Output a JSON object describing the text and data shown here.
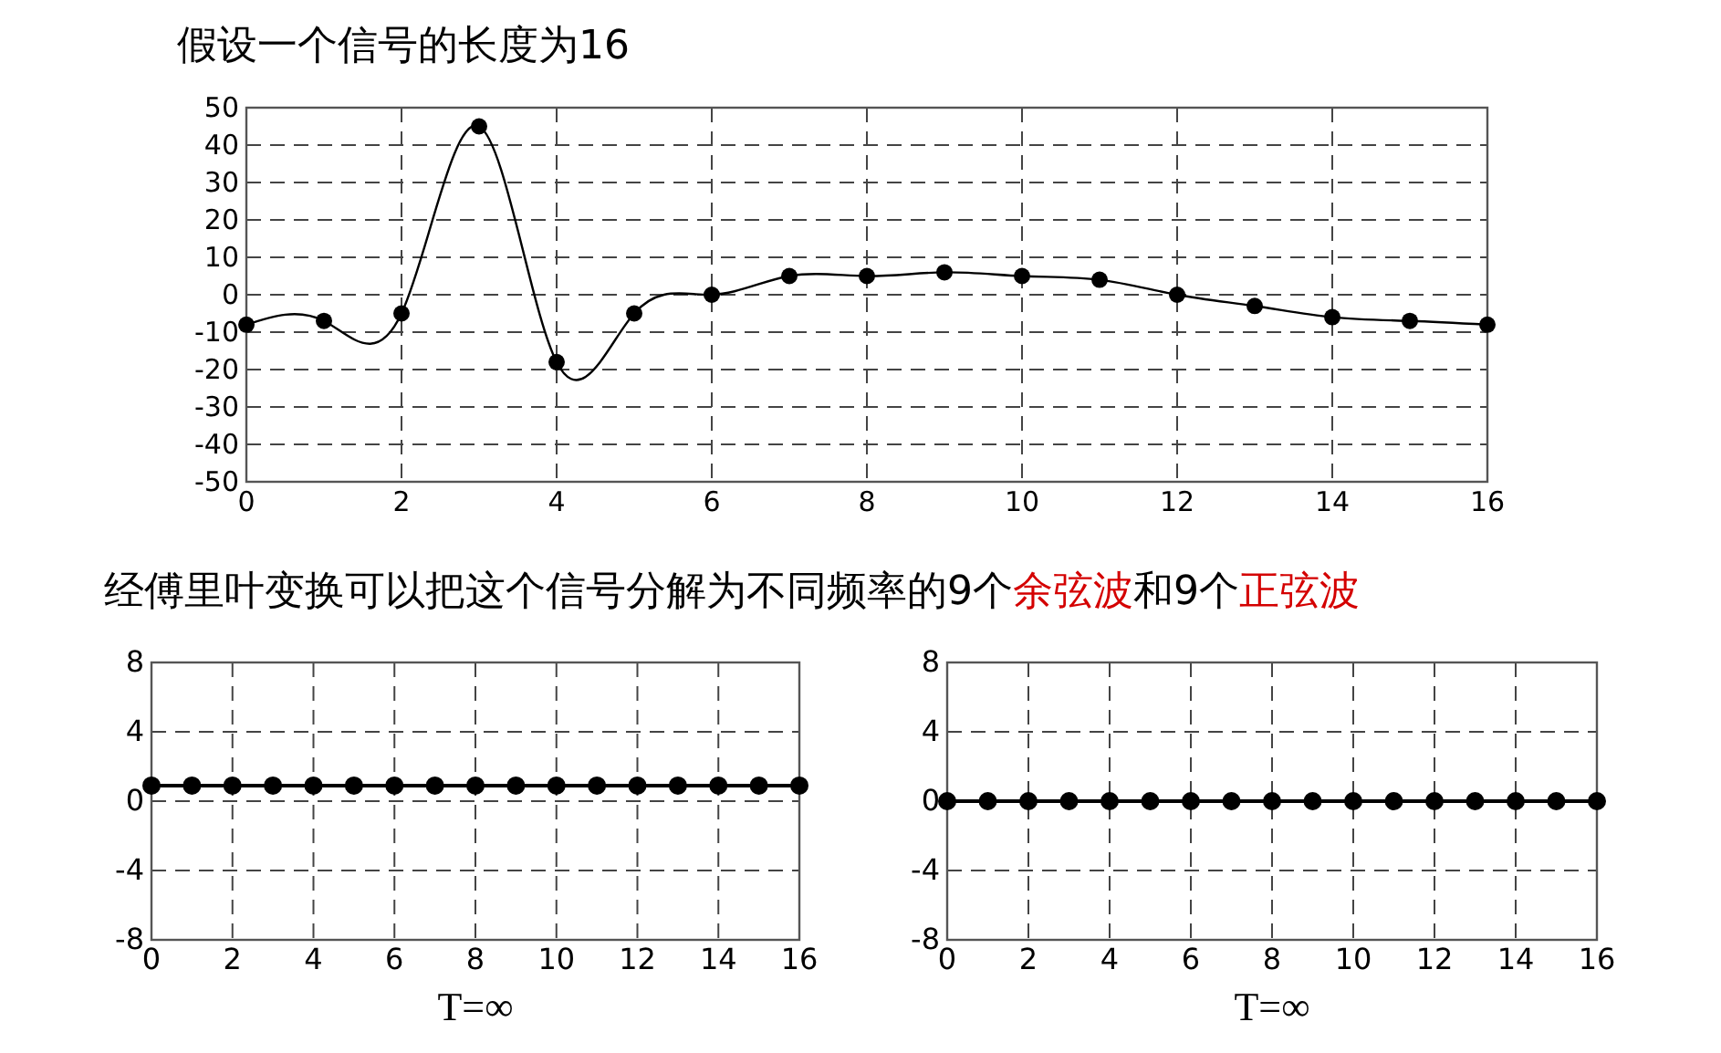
{
  "chart_data": [
    {
      "type": "line",
      "title": "假设一个信号的长度为16",
      "annotations": [
        "经傅里叶变换可以把这个信号分解为不同频率的9个",
        "余弦波",
        "和9个",
        "正弦波"
      ],
      "x": [
        0,
        1,
        2,
        3,
        4,
        5,
        6,
        7,
        8,
        9,
        10,
        11,
        12,
        13,
        14,
        15,
        16
      ],
      "xlim": [
        0,
        16
      ],
      "xticks": [
        0,
        2,
        4,
        6,
        8,
        10,
        12,
        14,
        16
      ],
      "ylim": [
        -50,
        50
      ],
      "yticks": [
        -50,
        -40,
        -30,
        -20,
        -10,
        0,
        10,
        20,
        30,
        40,
        50
      ],
      "grid": true,
      "marker": "circle",
      "line_style": "solid",
      "series": [
        {
          "color": "#000000",
          "values": [
            -8,
            -7,
            -5,
            45,
            -18,
            -5,
            0,
            5,
            5,
            6,
            5,
            4,
            0,
            -3,
            -6,
            -7,
            -8
          ]
        }
      ]
    },
    {
      "type": "line",
      "xlabel": "T=∞",
      "x": [
        0,
        1,
        2,
        3,
        4,
        5,
        6,
        7,
        8,
        9,
        10,
        11,
        12,
        13,
        14,
        15,
        16
      ],
      "xlim": [
        0,
        16
      ],
      "xticks": [
        0,
        2,
        4,
        6,
        8,
        10,
        12,
        14,
        16
      ],
      "ylim": [
        -8,
        8
      ],
      "yticks": [
        -8,
        -4,
        0,
        4,
        8
      ],
      "grid": true,
      "marker": "circle",
      "line_style": "solid",
      "series": [
        {
          "color": "#000000",
          "values": [
            0.9,
            0.9,
            0.9,
            0.9,
            0.9,
            0.9,
            0.9,
            0.9,
            0.9,
            0.9,
            0.9,
            0.9,
            0.9,
            0.9,
            0.9,
            0.9,
            0.9
          ]
        }
      ]
    },
    {
      "type": "line",
      "xlabel": "T=∞",
      "x": [
        0,
        1,
        2,
        3,
        4,
        5,
        6,
        7,
        8,
        9,
        10,
        11,
        12,
        13,
        14,
        15,
        16
      ],
      "xlim": [
        0,
        16
      ],
      "xticks": [
        0,
        2,
        4,
        6,
        8,
        10,
        12,
        14,
        16
      ],
      "ylim": [
        -8,
        8
      ],
      "yticks": [
        -8,
        -4,
        0,
        4,
        8
      ],
      "grid": true,
      "marker": "circle",
      "line_style": "solid",
      "series": [
        {
          "color": "#000000",
          "values": [
            0,
            0,
            0,
            0,
            0,
            0,
            0,
            0,
            0,
            0,
            0,
            0,
            0,
            0,
            0,
            0,
            0
          ]
        }
      ]
    }
  ]
}
